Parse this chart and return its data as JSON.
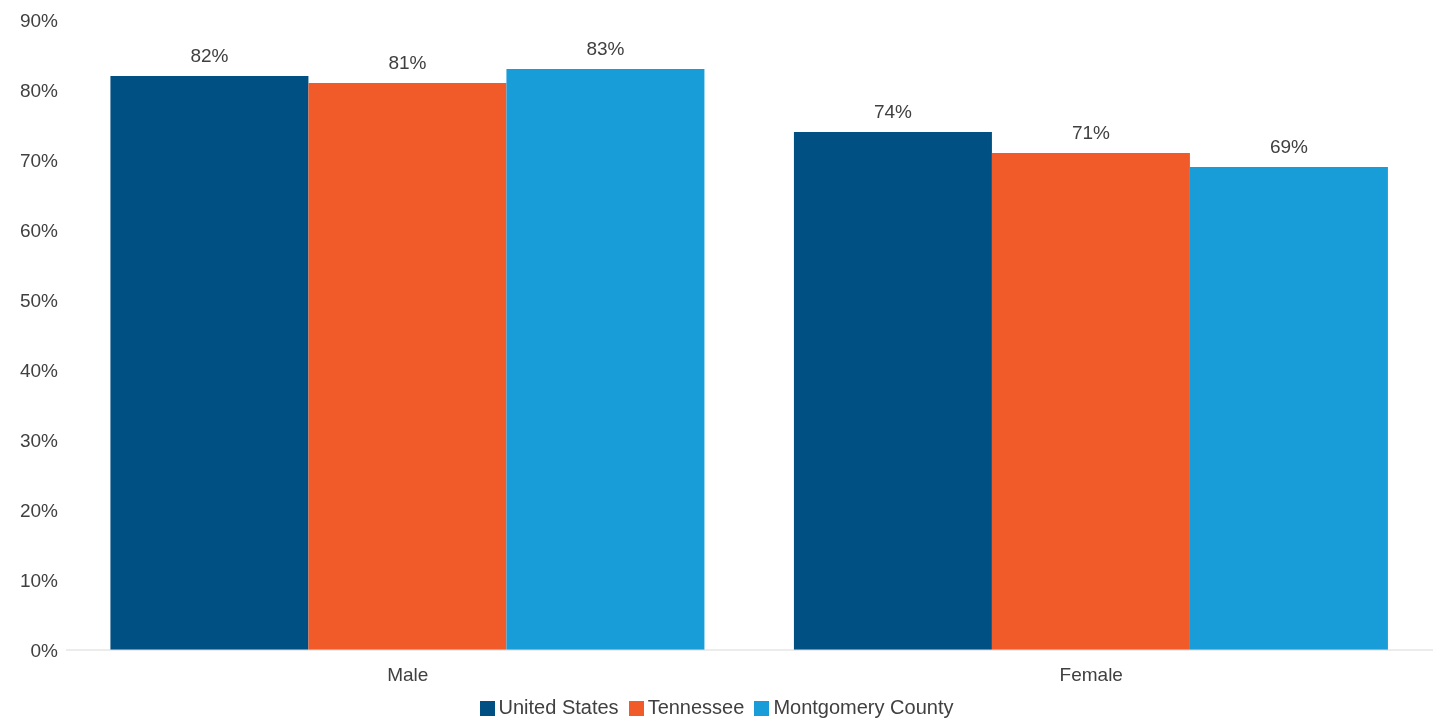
{
  "chart_data": {
    "type": "bar",
    "categories": [
      "Male",
      "Female"
    ],
    "series": [
      {
        "name": "United States",
        "color": "#005084",
        "values": [
          82,
          74
        ],
        "value_labels": [
          "82%",
          "74%"
        ]
      },
      {
        "name": "Tennessee",
        "color": "#f15a29",
        "values": [
          81,
          71
        ],
        "value_labels": [
          "81%",
          "71%"
        ]
      },
      {
        "name": "Montgomery County",
        "color": "#199dd8",
        "values": [
          83,
          69
        ],
        "value_labels": [
          "83%",
          "69%"
        ]
      }
    ],
    "ylim": [
      0,
      90
    ],
    "yticks": [
      {
        "value": 0,
        "label": "0%"
      },
      {
        "value": 10,
        "label": "10%"
      },
      {
        "value": 20,
        "label": "20%"
      },
      {
        "value": 30,
        "label": "30%"
      },
      {
        "value": 40,
        "label": "40%"
      },
      {
        "value": 50,
        "label": "50%"
      },
      {
        "value": 60,
        "label": "60%"
      },
      {
        "value": 70,
        "label": "70%"
      },
      {
        "value": 80,
        "label": "80%"
      },
      {
        "value": 90,
        "label": "90%"
      }
    ],
    "grid": false,
    "legend": "bottom"
  }
}
